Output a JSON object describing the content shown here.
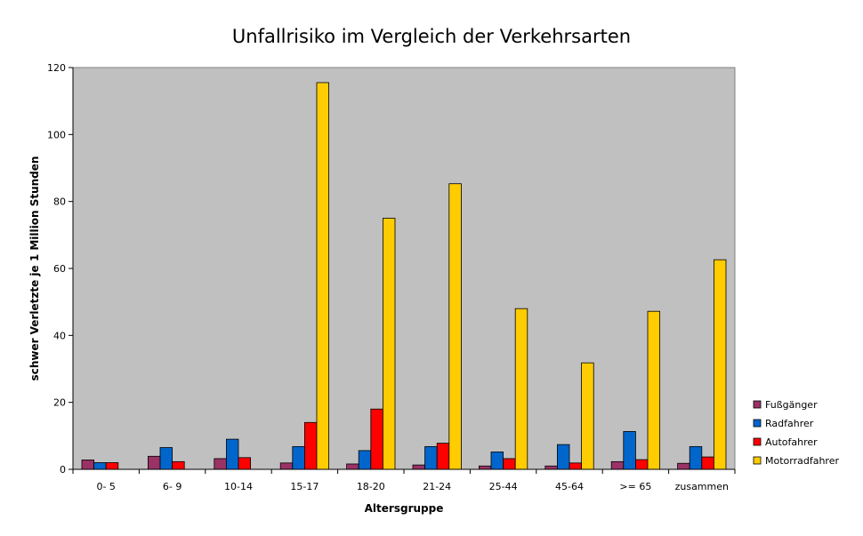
{
  "chart_data": {
    "type": "bar",
    "title": "Unfallrisiko im Vergleich der Verkehrsarten",
    "xlabel": "Altersgruppe",
    "ylabel": "schwer Verletzte je 1 Million Stunden",
    "ylim": [
      0,
      120
    ],
    "yticks": [
      0,
      20,
      40,
      60,
      80,
      100,
      120
    ],
    "grid": false,
    "legend_position": "right",
    "plot_background": "#c0c0c0",
    "categories": [
      "0- 5",
      "6- 9",
      "10-14",
      "15-17",
      "18-20",
      "21-24",
      "25-44",
      "45-64",
      ">= 65",
      "zusammen"
    ],
    "series": [
      {
        "name": "Fußgänger",
        "color": "#993366",
        "values": [
          2.8,
          3.9,
          3.2,
          1.9,
          1.6,
          1.3,
          1.0,
          1.0,
          2.3,
          1.8
        ]
      },
      {
        "name": "Radfahrer",
        "color": "#0066cc",
        "values": [
          2.0,
          6.5,
          9.0,
          6.8,
          5.6,
          6.8,
          5.2,
          7.4,
          11.3,
          6.8
        ]
      },
      {
        "name": "Autofahrer",
        "color": "#ff0000",
        "values": [
          2.0,
          2.3,
          3.5,
          14.0,
          18.0,
          7.8,
          3.2,
          1.9,
          2.9,
          3.7
        ]
      },
      {
        "name": "Motorradfahrer",
        "color": "#ffcc00",
        "values": [
          null,
          null,
          null,
          115.5,
          75.0,
          85.3,
          48.0,
          31.8,
          47.2,
          62.6
        ]
      }
    ]
  }
}
